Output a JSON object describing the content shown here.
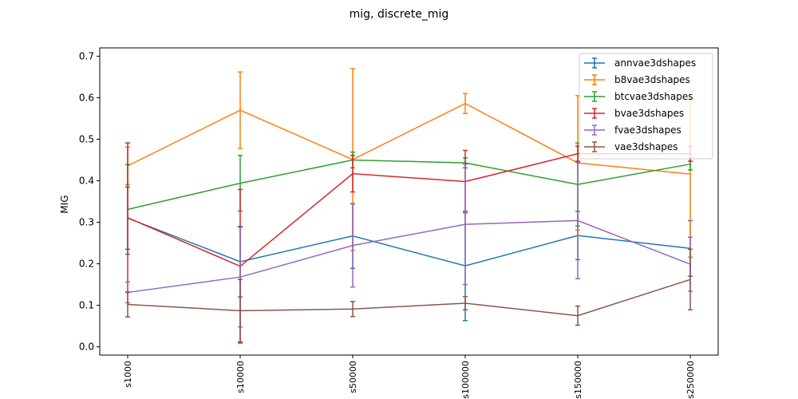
{
  "chart_data": {
    "type": "line",
    "title": "mig, discrete_mig",
    "xlabel": "",
    "ylabel": "MIG",
    "categories": [
      "s1000",
      "s10000",
      "s50000",
      "s100000",
      "s150000",
      "s250000"
    ],
    "ylim": [
      -0.02,
      0.72
    ],
    "yticks": [
      "0.0",
      "0.1",
      "0.2",
      "0.3",
      "0.4",
      "0.5",
      "0.6",
      "0.7"
    ],
    "legend_position": "top-right",
    "grid": false,
    "series": [
      {
        "name": "annvae3dshapes",
        "color": "#1f77b4",
        "values": [
          0.31,
          0.205,
          0.267,
          0.195,
          0.268,
          0.237
        ],
        "errors": [
          0.075,
          0.085,
          0.078,
          0.132,
          0.058,
          0.067
        ]
      },
      {
        "name": "b8vae3dshapes",
        "color": "#ff7f0e",
        "values": [
          0.436,
          0.57,
          0.451,
          0.586,
          0.443,
          0.416
        ],
        "errors": [
          0.045,
          0.092,
          0.219,
          0.024,
          0.162,
          0.2
        ]
      },
      {
        "name": "btcvae3dshapes",
        "color": "#2ca02c",
        "values": [
          0.331,
          0.394,
          0.45,
          0.443,
          0.391,
          0.44
        ],
        "errors": [
          0.108,
          0.067,
          0.019,
          0.012,
          0.1,
          0.014
        ]
      },
      {
        "name": "bvae3dshapes",
        "color": "#d62728",
        "values": [
          0.311,
          0.194,
          0.417,
          0.398,
          0.465,
          0.465
        ],
        "errors": [
          0.18,
          0.185,
          0.044,
          0.075,
          0.018,
          0.018
        ]
      },
      {
        "name": "fvae3dshapes",
        "color": "#9467bd",
        "values": [
          0.131,
          0.168,
          0.244,
          0.295,
          0.304,
          0.199
        ],
        "errors": [
          0.025,
          0.12,
          0.1,
          0.145,
          0.14,
          0.065
        ]
      },
      {
        "name": "vae3dshapes",
        "color": "#8c564b",
        "values": [
          0.102,
          0.087,
          0.091,
          0.105,
          0.075,
          0.162
        ],
        "errors": [
          0.03,
          0.075,
          0.018,
          0.016,
          0.023,
          0.073
        ]
      }
    ]
  }
}
